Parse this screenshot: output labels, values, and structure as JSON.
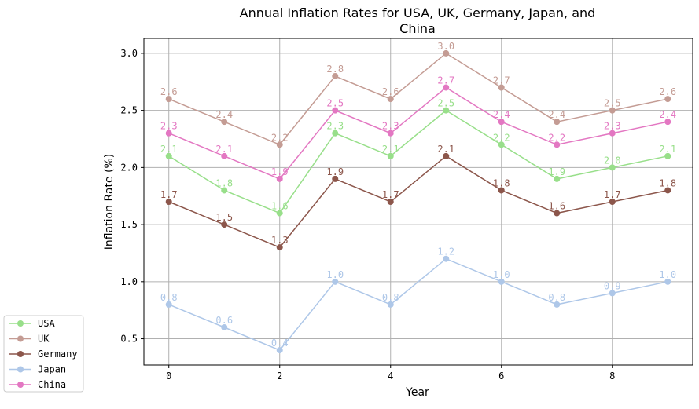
{
  "chart_data": {
    "type": "line",
    "title_lines": [
      "Annual Inflation Rates for USA, UK, Germany, Japan, and",
      "China"
    ],
    "xlabel": "Year",
    "ylabel": "Inflation Rate (%)",
    "x": [
      0,
      1,
      2,
      3,
      4,
      5,
      6,
      7,
      8,
      9
    ],
    "xlim": [
      -0.45,
      9.45
    ],
    "ylim": [
      0.27,
      3.13
    ],
    "xticks": [
      0,
      2,
      4,
      6,
      8
    ],
    "xtick_labels": [
      "0",
      "2",
      "4",
      "6",
      "8"
    ],
    "yticks": [
      0.5,
      1.0,
      1.5,
      2.0,
      2.5,
      3.0
    ],
    "ytick_labels": [
      "0.5",
      "1.0",
      "1.5",
      "2.0",
      "2.5",
      "3.0"
    ],
    "grid": true,
    "legend_position": "bottom-left outside",
    "series": [
      {
        "name": "USA",
        "color": "#98df8a",
        "values": [
          2.1,
          1.8,
          1.6,
          2.3,
          2.1,
          2.5,
          2.2,
          1.9,
          2.0,
          2.1
        ]
      },
      {
        "name": "UK",
        "color": "#c49c94",
        "values": [
          2.6,
          2.4,
          2.2,
          2.8,
          2.6,
          3.0,
          2.7,
          2.4,
          2.5,
          2.6
        ]
      },
      {
        "name": "Germany",
        "color": "#8c564b",
        "values": [
          1.7,
          1.5,
          1.3,
          1.9,
          1.7,
          2.1,
          1.8,
          1.6,
          1.7,
          1.8
        ]
      },
      {
        "name": "Japan",
        "color": "#aec7e8",
        "values": [
          0.8,
          0.6,
          0.4,
          1.0,
          0.8,
          1.2,
          1.0,
          0.8,
          0.9,
          1.0
        ]
      },
      {
        "name": "China",
        "color": "#e377c2",
        "values": [
          2.3,
          2.1,
          1.9,
          2.5,
          2.3,
          2.7,
          2.4,
          2.2,
          2.3,
          2.4
        ]
      }
    ]
  }
}
